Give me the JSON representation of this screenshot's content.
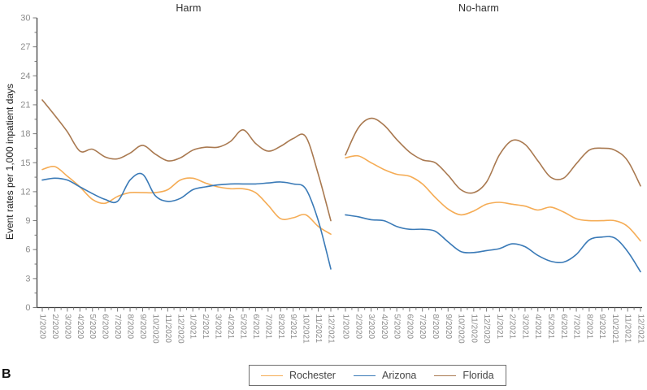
{
  "figure_label": "B",
  "chart_data": {
    "type": "line",
    "title": "",
    "ylabel": "Event rates per 1,000 inpatient days",
    "ylim": [
      0,
      30
    ],
    "ytick_step": 3,
    "ytick_minor_step": 1.5,
    "grid": "off",
    "legend_position": "bottom-center",
    "axis_color": "#3f3f3f",
    "tick_color": "#7c7c7c",
    "tick_label_color": "#8c8c8c",
    "x_categories": [
      "1/2020",
      "2/2020",
      "3/2020",
      "4/2020",
      "5/2020",
      "6/2020",
      "7/2020",
      "8/2020",
      "9/2020",
      "10/2020",
      "11/2020",
      "12/2020",
      "1/2021",
      "2/2021",
      "3/2021",
      "4/2021",
      "5/2021",
      "6/2021",
      "7/2021",
      "8/2021",
      "9/2021",
      "10/2021",
      "11/2021",
      "12/2021"
    ],
    "legend": [
      {
        "label": "Rochester",
        "color": "#F5AC55"
      },
      {
        "label": "Arizona",
        "color": "#3A7AB7"
      },
      {
        "label": "Florida",
        "color": "#A97950"
      }
    ],
    "panels": [
      {
        "title": "Harm",
        "series": [
          {
            "name": "Rochester",
            "color": "#F5AC55",
            "values": [
              14.3,
              14.6,
              13.6,
              12.5,
              11.2,
              10.8,
              11.5,
              11.9,
              11.9,
              11.9,
              12.2,
              13.2,
              13.4,
              12.9,
              12.5,
              12.3,
              12.3,
              11.9,
              10.6,
              9.2,
              9.3,
              9.6,
              8.4,
              7.6
            ]
          },
          {
            "name": "Arizona",
            "color": "#3A7AB7",
            "values": [
              13.2,
              13.4,
              13.2,
              12.5,
              11.8,
              11.2,
              11.0,
              13.2,
              13.8,
              11.6,
              11.0,
              11.3,
              12.2,
              12.5,
              12.7,
              12.8,
              12.8,
              12.8,
              12.9,
              13.0,
              12.8,
              12.3,
              9.0,
              4.0
            ]
          },
          {
            "name": "Florida",
            "color": "#A97950",
            "values": [
              21.5,
              19.9,
              18.2,
              16.2,
              16.4,
              15.6,
              15.4,
              16.0,
              16.8,
              15.9,
              15.2,
              15.5,
              16.3,
              16.6,
              16.6,
              17.2,
              18.4,
              17.0,
              16.2,
              16.7,
              17.5,
              17.7,
              13.8,
              9.0
            ]
          }
        ]
      },
      {
        "title": "No-harm",
        "series": [
          {
            "name": "Rochester",
            "color": "#F5AC55",
            "values": [
              15.5,
              15.7,
              15.0,
              14.3,
              13.8,
              13.6,
              12.8,
              11.4,
              10.2,
              9.6,
              10.0,
              10.7,
              10.9,
              10.7,
              10.5,
              10.1,
              10.4,
              9.9,
              9.2,
              9.0,
              9.0,
              9.0,
              8.4,
              6.9
            ]
          },
          {
            "name": "Arizona",
            "color": "#3A7AB7",
            "values": [
              9.6,
              9.4,
              9.1,
              9.0,
              8.4,
              8.1,
              8.1,
              7.9,
              6.8,
              5.8,
              5.7,
              5.9,
              6.1,
              6.6,
              6.3,
              5.4,
              4.8,
              4.7,
              5.5,
              7.0,
              7.3,
              7.2,
              5.8,
              3.7
            ]
          },
          {
            "name": "Florida",
            "color": "#A97950",
            "values": [
              15.8,
              18.6,
              19.6,
              18.9,
              17.4,
              16.1,
              15.3,
              15.0,
              13.7,
              12.2,
              11.9,
              13.0,
              15.8,
              17.3,
              16.9,
              15.2,
              13.5,
              13.4,
              14.9,
              16.3,
              16.5,
              16.3,
              15.2,
              12.6
            ]
          }
        ]
      }
    ]
  }
}
